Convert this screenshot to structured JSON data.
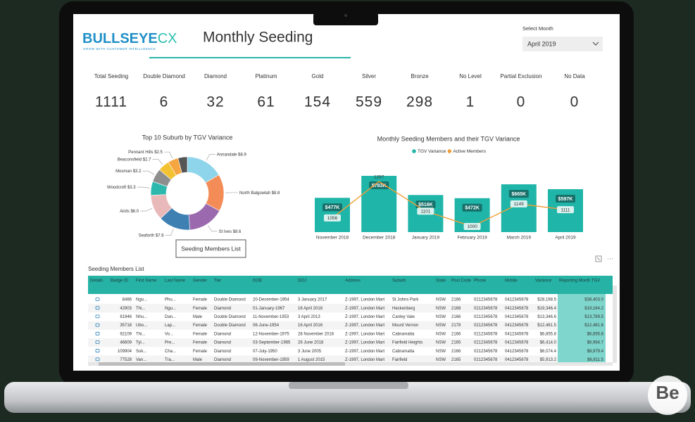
{
  "header": {
    "logo": "BULLSEYE",
    "logo_accent": "CX",
    "tagline": "GROW WITH CUSTOMER INTELLIGENCE",
    "title": "Monthly Seeding",
    "select_label": "Select Month",
    "select_value": "April 2019"
  },
  "kpis": [
    {
      "label": "Total Seeding",
      "value": 1111
    },
    {
      "label": "Double Diamond",
      "value": 6
    },
    {
      "label": "Diamond",
      "value": 32
    },
    {
      "label": "Platinum",
      "value": 61
    },
    {
      "label": "Gold",
      "value": 154
    },
    {
      "label": "Silver",
      "value": 559
    },
    {
      "label": "Bronze",
      "value": 298
    },
    {
      "label": "No Level",
      "value": 1
    },
    {
      "label": "Partial Exclusion",
      "value": 0
    },
    {
      "label": "No Data",
      "value": 0
    }
  ],
  "chart_data": [
    {
      "type": "pie",
      "title": "Top 10 Suburb by TGV Variance",
      "categories": [
        "Annandale",
        "North Balgowlah",
        "St Ives",
        "Seaforth",
        "Airds",
        "Woodcroft",
        "Mosman",
        "Beaconsfield",
        "Pennant Hills",
        null
      ],
      "values": [
        8.9,
        8.8,
        8.6,
        7.6,
        6.0,
        3.3,
        3.2,
        2.7,
        2.5,
        2.2
      ],
      "value_labels": [
        "$8.9",
        "$8.8",
        "$8.6",
        "$7.6",
        "$6.0",
        "$3.3",
        "$3.2",
        "$2.7",
        "$2.5",
        null
      ],
      "colors": [
        "#8ed4ea",
        "#f48c57",
        "#9b6aae",
        "#3f80b3",
        "#e9b8b8",
        "#2db8ad",
        "#8e8e8e",
        "#f2c232",
        "#f6a640",
        "#555555"
      ]
    },
    {
      "type": "bar",
      "title": "Monthly Seeding Members and their TGV Variance",
      "categories": [
        "November 2018",
        "December 2018",
        "January 2019",
        "February 2019",
        "March 2019",
        "April 2019"
      ],
      "series": [
        {
          "name": "TGV Variance",
          "color": "#1fb5a8",
          "type": "bar",
          "values": [
            477,
            783,
            516,
            472,
            665,
            597
          ],
          "value_labels": [
            "$477K",
            "$783K",
            "$516K",
            "$472K",
            "$665K",
            "$597K"
          ]
        },
        {
          "name": "Active Members",
          "color": "#f0a038",
          "type": "line",
          "values": [
            1056,
            1297,
            1101,
            1000,
            1149,
            1111
          ]
        }
      ]
    }
  ],
  "button": "Seeding Members List",
  "table": {
    "title": "Seeding Members List",
    "columns": [
      "Details",
      "Badge ID",
      "First Name",
      "Last Name",
      "Gender",
      "Tier",
      "DOB",
      "DOJ",
      "Address",
      "Suburb",
      "State",
      "Post Code",
      "Phone",
      "Mobile",
      "Variance",
      "Reporting Month TGV"
    ],
    "rows": [
      [
        "",
        "8466",
        "Ngo...",
        "Phu...",
        "Female",
        "Double Diamond",
        "20-December-1954",
        "3 January 2017",
        "Z-1997, London Mart",
        "St Johns Park",
        "NSW",
        "2166",
        "0212345678",
        "0412345678",
        "$28,198.5",
        "$38,403.0"
      ],
      [
        "",
        "42903",
        "Thi...",
        "Ngu...",
        "Female",
        "Diamond",
        "01-January-1967",
        "16 April 2018",
        "Z-1997, London Mart",
        "Heckenberg",
        "NSW",
        "2168",
        "0212345678",
        "0412345678",
        "$19,346.4",
        "$19,164.2"
      ],
      [
        "",
        "81946",
        "Nhu...",
        "Dan...",
        "Male",
        "Double Diamond",
        "11-November-1953",
        "3 April 2013",
        "Z-1997, London Mart",
        "Canley Vale",
        "NSW",
        "2166",
        "0212345678",
        "0412345678",
        "$13,346.6",
        "$13,789.5"
      ],
      [
        "",
        "35718",
        "Ubo...",
        "Lap...",
        "Female",
        "Double Diamond",
        "06-June-1954",
        "16 April 2016",
        "Z-1997, London Mart",
        "Mount Vernon",
        "NSW",
        "2178",
        "0212345678",
        "0412345678",
        "$12,481.5",
        "$12,481.6"
      ],
      [
        "",
        "92109",
        "Thi...",
        "Vo...",
        "Female",
        "Diamond",
        "12-November-1975",
        "28 November 2016",
        "Z-1997, London Mart",
        "Cabramatta",
        "NSW",
        "2166",
        "0212345678",
        "0412345678",
        "$6,855.8",
        "$6,855.8"
      ],
      [
        "",
        "46609",
        "Tyl...",
        "Pre...",
        "Female",
        "Diamond",
        "03-September-1965",
        "26 June 2018",
        "Z-1997, London Mart",
        "Fairfield Heights",
        "NSW",
        "2165",
        "0212345678",
        "0412345678",
        "$6,414.0",
        "$6,964.7"
      ],
      [
        "",
        "109904",
        "Sok...",
        "Cha...",
        "Female",
        "Diamond",
        "07-July-1950",
        "3 June 2005",
        "Z-1997, London Mart",
        "Cabramatta",
        "NSW",
        "2166",
        "0212345678",
        "0412345678",
        "$6,074.4",
        "$8,979.4"
      ],
      [
        "",
        "77528",
        "Van...",
        "Tra...",
        "Male",
        "Diamond",
        "09-November-1959",
        "1 August 2015",
        "Z-1997, London Mart",
        "Fairfield",
        "NSW",
        "2165",
        "0212345678",
        "0412345678",
        "$5,913.2",
        "$6,811.5"
      ]
    ]
  },
  "watermark": "Be"
}
